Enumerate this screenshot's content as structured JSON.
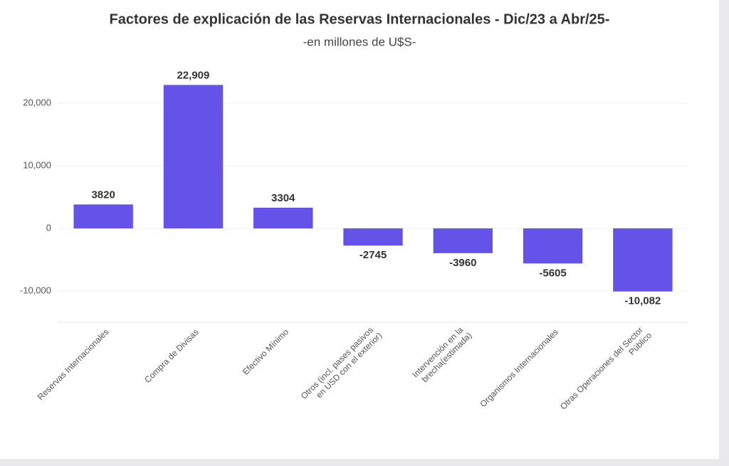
{
  "chart_data": {
    "type": "bar",
    "title": "Factores de explicación de las Reservas Internacionales - Dic/23 a Abr/25-",
    "subtitle": "-en millones de U$S-",
    "categories": [
      "Reservas Internacionales",
      "Compra de Divisas",
      "Efectivo Mínimo",
      "Otros (incl. pases pasivos en USD con el exterior)",
      "Intervención en la brecha(estimada)",
      "Organismos Internacionales",
      "Otras Operaciones del Sector Público"
    ],
    "values": [
      3820,
      22909,
      3304,
      -2745,
      -3960,
      -5605,
      -10082
    ],
    "value_labels": [
      "3820",
      "22,909",
      "3304",
      "-2745",
      "-3960",
      "-5605",
      "-10,082"
    ],
    "color": "#6552e8",
    "ylim": [
      -15000,
      25000
    ],
    "yticks": [
      {
        "value": -10000,
        "label": "-10,000"
      },
      0,
      {
        "value": 10000,
        "label": "10,000"
      },
      {
        "value": 20000,
        "label": "20,000"
      }
    ],
    "grid": true
  }
}
